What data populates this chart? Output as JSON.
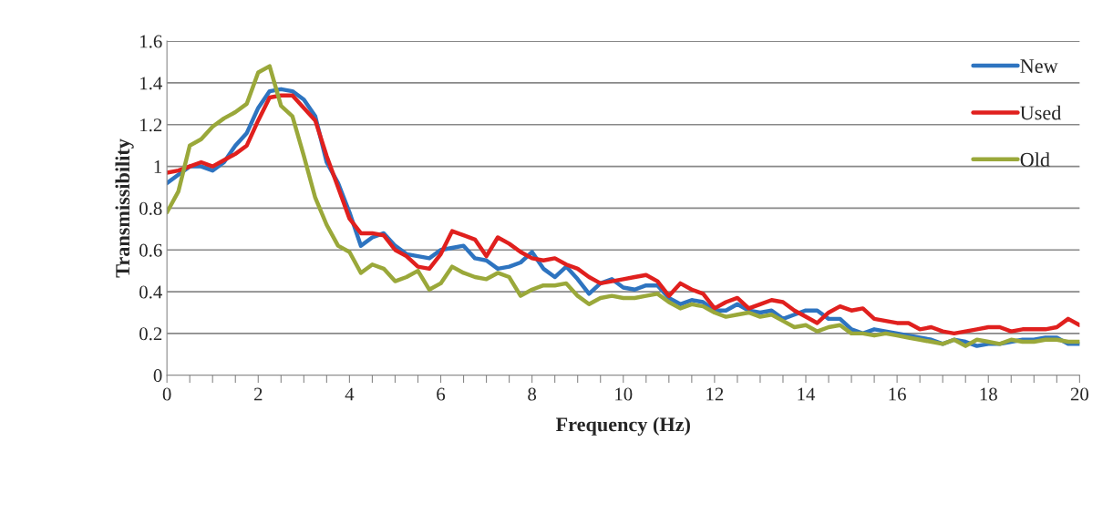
{
  "chart_data": {
    "type": "line",
    "xlabel": "Frequency (Hz)",
    "ylabel": "Transmissibility",
    "x": [
      0,
      0.25,
      0.5,
      0.75,
      1,
      1.25,
      1.5,
      1.75,
      2,
      2.25,
      2.5,
      2.75,
      3,
      3.25,
      3.5,
      3.75,
      4,
      4.25,
      4.5,
      4.75,
      5,
      5.25,
      5.5,
      5.75,
      6,
      6.25,
      6.5,
      6.75,
      7,
      7.25,
      7.5,
      7.75,
      8,
      8.25,
      8.5,
      8.75,
      9,
      9.25,
      9.5,
      9.75,
      10,
      10.25,
      10.5,
      10.75,
      11,
      11.25,
      11.5,
      11.75,
      12,
      12.25,
      12.5,
      12.75,
      13,
      13.25,
      13.5,
      13.75,
      14,
      14.25,
      14.5,
      14.75,
      15,
      15.25,
      15.5,
      15.75,
      16,
      16.25,
      16.5,
      16.75,
      17,
      17.25,
      17.5,
      17.75,
      18,
      18.25,
      18.5,
      18.75,
      19,
      19.25,
      19.5,
      19.75,
      20
    ],
    "series": [
      {
        "name": "New",
        "color": "#2e74c0",
        "values": [
          0.92,
          0.96,
          1.0,
          1.0,
          0.98,
          1.02,
          1.1,
          1.16,
          1.28,
          1.36,
          1.37,
          1.36,
          1.32,
          1.24,
          1.02,
          0.92,
          0.78,
          0.62,
          0.66,
          0.68,
          0.62,
          0.58,
          0.57,
          0.56,
          0.6,
          0.61,
          0.62,
          0.56,
          0.55,
          0.51,
          0.52,
          0.54,
          0.59,
          0.51,
          0.47,
          0.52,
          0.46,
          0.39,
          0.44,
          0.46,
          0.42,
          0.41,
          0.43,
          0.43,
          0.37,
          0.34,
          0.36,
          0.35,
          0.31,
          0.31,
          0.34,
          0.31,
          0.3,
          0.31,
          0.27,
          0.29,
          0.31,
          0.31,
          0.27,
          0.27,
          0.22,
          0.2,
          0.22,
          0.21,
          0.2,
          0.19,
          0.18,
          0.17,
          0.15,
          0.17,
          0.16,
          0.14,
          0.15,
          0.15,
          0.16,
          0.17,
          0.17,
          0.18,
          0.18,
          0.15,
          0.15
        ]
      },
      {
        "name": "Used",
        "color": "#e0201e",
        "values": [
          0.97,
          0.98,
          1.0,
          1.02,
          1.0,
          1.03,
          1.06,
          1.1,
          1.22,
          1.33,
          1.34,
          1.34,
          1.28,
          1.22,
          1.05,
          0.9,
          0.75,
          0.68,
          0.68,
          0.67,
          0.6,
          0.57,
          0.52,
          0.51,
          0.58,
          0.69,
          0.67,
          0.65,
          0.57,
          0.66,
          0.63,
          0.59,
          0.56,
          0.55,
          0.56,
          0.53,
          0.51,
          0.47,
          0.44,
          0.45,
          0.46,
          0.47,
          0.48,
          0.45,
          0.38,
          0.44,
          0.41,
          0.39,
          0.32,
          0.35,
          0.37,
          0.32,
          0.34,
          0.36,
          0.35,
          0.31,
          0.28,
          0.25,
          0.3,
          0.33,
          0.31,
          0.32,
          0.27,
          0.26,
          0.25,
          0.25,
          0.22,
          0.23,
          0.21,
          0.2,
          0.21,
          0.22,
          0.23,
          0.23,
          0.21,
          0.22,
          0.22,
          0.22,
          0.23,
          0.27,
          0.24
        ]
      },
      {
        "name": "Old",
        "color": "#9aa83a",
        "values": [
          0.78,
          0.88,
          1.1,
          1.13,
          1.19,
          1.23,
          1.26,
          1.3,
          1.45,
          1.48,
          1.29,
          1.24,
          1.05,
          0.85,
          0.72,
          0.62,
          0.59,
          0.49,
          0.53,
          0.51,
          0.45,
          0.47,
          0.5,
          0.41,
          0.44,
          0.52,
          0.49,
          0.47,
          0.46,
          0.49,
          0.47,
          0.38,
          0.41,
          0.43,
          0.43,
          0.44,
          0.38,
          0.34,
          0.37,
          0.38,
          0.37,
          0.37,
          0.38,
          0.39,
          0.35,
          0.32,
          0.34,
          0.33,
          0.3,
          0.28,
          0.29,
          0.3,
          0.28,
          0.29,
          0.26,
          0.23,
          0.24,
          0.21,
          0.23,
          0.24,
          0.2,
          0.2,
          0.19,
          0.2,
          0.19,
          0.18,
          0.17,
          0.16,
          0.15,
          0.17,
          0.14,
          0.17,
          0.16,
          0.15,
          0.17,
          0.16,
          0.16,
          0.17,
          0.17,
          0.16,
          0.16
        ]
      }
    ],
    "xlim": [
      0,
      20
    ],
    "ylim": [
      0,
      1.6
    ],
    "xticks": [
      0,
      {
        "value": 0.5,
        "label": null
      },
      {
        "value": 1,
        "label": null
      },
      {
        "value": 1.5,
        "label": null
      },
      2,
      {
        "value": 2.5,
        "label": null
      },
      {
        "value": 3,
        "label": null
      },
      {
        "value": 3.5,
        "label": null
      },
      4,
      {
        "value": 4.5,
        "label": null
      },
      {
        "value": 5,
        "label": null
      },
      {
        "value": 5.5,
        "label": null
      },
      6,
      {
        "value": 6.5,
        "label": null
      },
      {
        "value": 7,
        "label": null
      },
      {
        "value": 7.5,
        "label": null
      },
      8,
      {
        "value": 8.5,
        "label": null
      },
      {
        "value": 9,
        "label": null
      },
      {
        "value": 9.5,
        "label": null
      },
      10,
      {
        "value": 10.5,
        "label": null
      },
      {
        "value": 11,
        "label": null
      },
      {
        "value": 11.5,
        "label": null
      },
      12,
      {
        "value": 12.5,
        "label": null
      },
      {
        "value": 13,
        "label": null
      },
      {
        "value": 13.5,
        "label": null
      },
      14,
      {
        "value": 14.5,
        "label": null
      },
      {
        "value": 15,
        "label": null
      },
      {
        "value": 15.5,
        "label": null
      },
      16,
      {
        "value": 16.5,
        "label": null
      },
      {
        "value": 17,
        "label": null
      },
      {
        "value": 17.5,
        "label": null
      },
      18,
      {
        "value": 18.5,
        "label": null
      },
      {
        "value": 19,
        "label": null
      },
      {
        "value": 19.5,
        "label": null
      },
      20
    ],
    "yticks": [
      0,
      0.2,
      0.4,
      0.6,
      0.8,
      1,
      1.2,
      1.4,
      1.6
    ],
    "grid": "y",
    "legend": "right",
    "marker": "none",
    "line_style": "solid"
  }
}
